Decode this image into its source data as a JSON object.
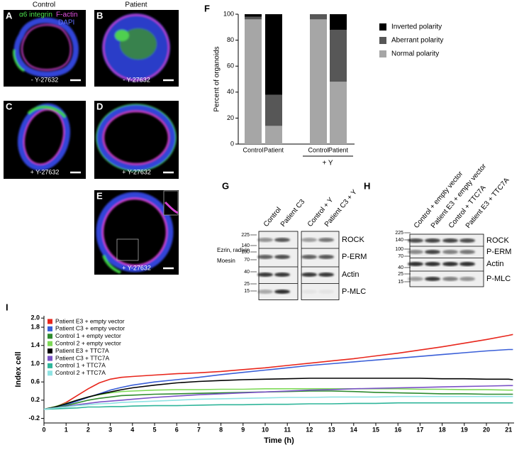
{
  "column_titles": [
    "Control",
    "Patient"
  ],
  "stain_labels": [
    "α6 integrin",
    "F-actin",
    "DAPI"
  ],
  "images": [
    {
      "label": "A",
      "treatment": "- Y-27632"
    },
    {
      "label": "B",
      "treatment": "- Y-27632"
    },
    {
      "label": "C",
      "treatment": "+ Y-27632"
    },
    {
      "label": "D",
      "treatment": "+ Y-27632"
    },
    {
      "label": "E",
      "treatment": "+ Y-27632"
    }
  ],
  "blots": [
    {
      "label": "G",
      "columns": [
        "Control",
        "Patient C3",
        "Control + Y",
        "Patient C3 + Y"
      ],
      "rows": [
        "ROCK",
        "P-ERM",
        "Actin",
        "P-MLC"
      ],
      "markers": [
        "225",
        "140",
        "100",
        "70",
        "40",
        "25",
        "15"
      ],
      "annotations": [
        "Ezrin, radixin",
        "Moesin"
      ]
    },
    {
      "label": "H",
      "columns": [
        "Control + empty vector",
        "Patient E3 + empty vector",
        "Control + TTC7A",
        "Patient E3 + TTC7A"
      ],
      "rows": [
        "ROCK",
        "P-ERM",
        "Actin",
        "P-MLC"
      ],
      "markers": [
        "225",
        "140",
        "100",
        "70",
        "40",
        "25",
        "15"
      ]
    }
  ],
  "chart_data": [
    {
      "type": "bar",
      "stacked": true,
      "panel_label": "F",
      "categories": [
        "Control",
        "Patient",
        "Control",
        "Patient"
      ],
      "group_label": "+ Y",
      "ylabel": "Percent of organoids",
      "ylim": [
        0,
        100
      ],
      "yticks": [
        0,
        20,
        40,
        60,
        80,
        100
      ],
      "series": [
        {
          "name": "Normal polarity",
          "color": "#a6a6a6",
          "values": [
            96,
            14,
            96,
            48
          ]
        },
        {
          "name": "Aberrant polarity",
          "color": "#575757",
          "values": [
            2,
            24,
            4,
            40
          ]
        },
        {
          "name": "Inverted polarity",
          "color": "#000000",
          "values": [
            2,
            62,
            0,
            12
          ]
        }
      ]
    },
    {
      "type": "line",
      "panel_label": "I",
      "xlabel": "Time (h)",
      "ylabel": "Index cell",
      "x": [
        0,
        0.5,
        1,
        1.5,
        2,
        2.5,
        3,
        3.5,
        4,
        5,
        6,
        7,
        8,
        9,
        10,
        11,
        12,
        13,
        14,
        15,
        16,
        17,
        18,
        19,
        20,
        21,
        21.2
      ],
      "xlim": [
        0,
        21.25
      ],
      "xticks": [
        0,
        1,
        2,
        3,
        4,
        5,
        6,
        7,
        8,
        9,
        10,
        11,
        12,
        13,
        14,
        15,
        16,
        17,
        18,
        19,
        20,
        21
      ],
      "ylim": [
        -0.3,
        2.05
      ],
      "yticks": [
        -0.2,
        0.2,
        0.6,
        {
          "value": 1,
          "label": "1.0"
        },
        1.4,
        1.8,
        {
          "value": 2,
          "label": "2.0"
        }
      ],
      "series": [
        {
          "name": "Patient E3 + empty vector",
          "color": "#e8261c",
          "values": [
            0,
            0.05,
            0.15,
            0.3,
            0.45,
            0.58,
            0.66,
            0.7,
            0.72,
            0.75,
            0.78,
            0.8,
            0.83,
            0.87,
            0.91,
            0.96,
            1.01,
            1.06,
            1.11,
            1.17,
            1.23,
            1.3,
            1.37,
            1.45,
            1.53,
            1.62,
            1.64
          ]
        },
        {
          "name": "Patient C3 + empty vector",
          "color": "#3a5fd8",
          "values": [
            0,
            0.04,
            0.1,
            0.18,
            0.26,
            0.34,
            0.42,
            0.48,
            0.53,
            0.6,
            0.65,
            0.7,
            0.76,
            0.81,
            0.86,
            0.91,
            0.96,
            1,
            1.04,
            1.08,
            1.12,
            1.16,
            1.2,
            1.24,
            1.28,
            1.31,
            1.31
          ]
        },
        {
          "name": "Control 1 + empty vector",
          "color": "#2e8b2e",
          "values": [
            0,
            0.03,
            0.08,
            0.14,
            0.2,
            0.24,
            0.27,
            0.3,
            0.31,
            0.33,
            0.34,
            0.35,
            0.36,
            0.37,
            0.38,
            0.39,
            0.4,
            0.4,
            0.39,
            0.37,
            0.36,
            0.35,
            0.34,
            0.34,
            0.33,
            0.33,
            0.33
          ]
        },
        {
          "name": "Control 2 + empty vector",
          "color": "#7ed957",
          "values": [
            0,
            0.06,
            0.13,
            0.2,
            0.27,
            0.32,
            0.36,
            0.39,
            0.4,
            0.42,
            0.43,
            0.43,
            0.44,
            0.44,
            0.45,
            0.45,
            0.45,
            0.45,
            0.45,
            0.45,
            0.45,
            0.44,
            0.44,
            0.43,
            0.43,
            0.42,
            0.42
          ]
        },
        {
          "name": "Patient E3 + TTC7A",
          "color": "#000000",
          "values": [
            0,
            0.05,
            0.12,
            0.2,
            0.27,
            0.33,
            0.38,
            0.43,
            0.47,
            0.53,
            0.58,
            0.61,
            0.63,
            0.65,
            0.66,
            0.67,
            0.68,
            0.68,
            0.68,
            0.68,
            0.68,
            0.68,
            0.67,
            0.67,
            0.66,
            0.66,
            0.65
          ]
        },
        {
          "name": "Patient C3 + TTC7A",
          "color": "#7a52c7",
          "values": [
            0,
            0.03,
            0.06,
            0.1,
            0.13,
            0.16,
            0.18,
            0.2,
            0.22,
            0.26,
            0.29,
            0.32,
            0.34,
            0.36,
            0.38,
            0.4,
            0.42,
            0.43,
            0.45,
            0.46,
            0.47,
            0.48,
            0.49,
            0.5,
            0.51,
            0.52,
            0.52
          ]
        },
        {
          "name": "Control 1 + TTC7A",
          "color": "#2fb59a",
          "values": [
            0,
            0.01,
            0.02,
            0.03,
            0.05,
            0.05,
            0.06,
            0.06,
            0.07,
            0.08,
            0.08,
            0.09,
            0.1,
            0.1,
            0.11,
            0.11,
            0.12,
            0.12,
            0.13,
            0.13,
            0.14,
            0.14,
            0.14,
            0.14,
            0.14,
            0.14,
            0.14
          ]
        },
        {
          "name": "Control 2 + TTC7A",
          "color": "#8fe3e3",
          "values": [
            0,
            0.03,
            0.05,
            0.08,
            0.1,
            0.12,
            0.13,
            0.15,
            0.16,
            0.18,
            0.2,
            0.22,
            0.23,
            0.24,
            0.25,
            0.26,
            0.26,
            0.27,
            0.27,
            0.27,
            0.28,
            0.28,
            0.28,
            0.28,
            0.28,
            0.28,
            0.28
          ]
        }
      ]
    }
  ]
}
